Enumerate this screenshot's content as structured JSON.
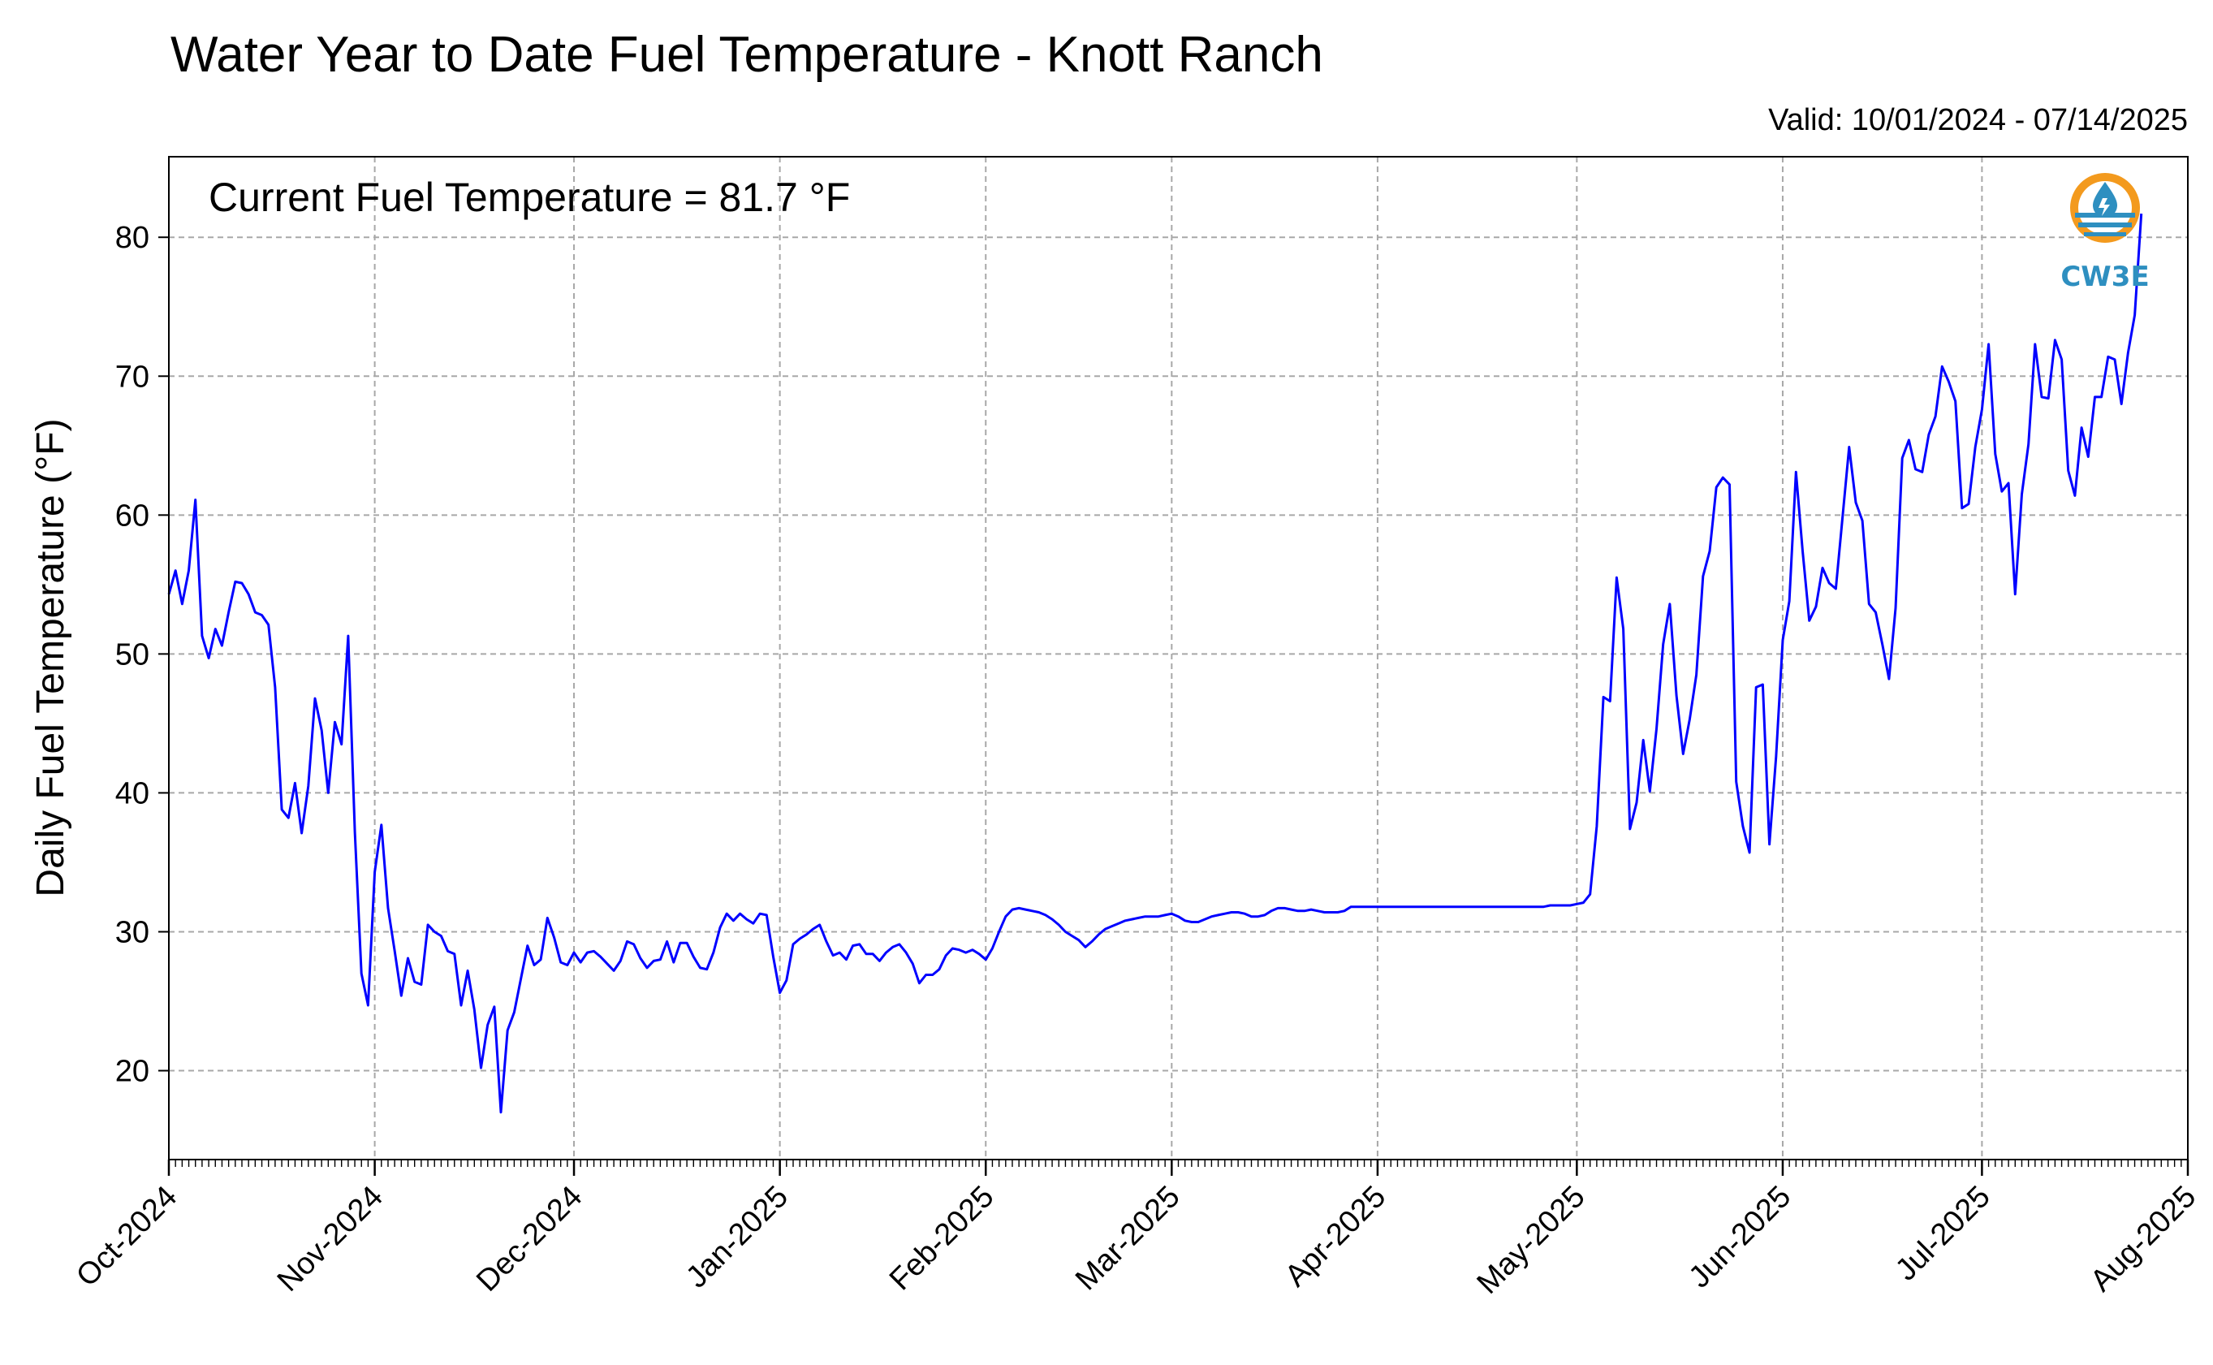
{
  "chart_data": {
    "type": "line",
    "title": "Water Year to Date Fuel Temperature - Knott Ranch",
    "valid_label": "Valid: 10/01/2024 - 07/14/2025",
    "current_label": "Current Fuel Temperature = 81.7 °F",
    "ylabel": "Daily Fuel Temperature (°F)",
    "xlabel": "",
    "ylim": [
      13.6,
      85.8
    ],
    "xlim": [
      "2024-10-01",
      "2025-08-01"
    ],
    "y_ticks": [
      20,
      30,
      40,
      50,
      60,
      70,
      80
    ],
    "x_ticks": [
      "2024-10-01",
      "2024-11-01",
      "2024-12-01",
      "2025-01-01",
      "2025-02-01",
      "2025-03-01",
      "2025-04-01",
      "2025-05-01",
      "2025-06-01",
      "2025-07-01",
      "2025-08-01"
    ],
    "x_tick_labels": [
      "Oct-2024",
      "Nov-2024",
      "Dec-2024",
      "Jan-2025",
      "Feb-2025",
      "Mar-2025",
      "Apr-2025",
      "May-2025",
      "Jun-2025",
      "Jul-2025",
      "Aug-2025"
    ],
    "grid": true,
    "line_color": "#0000ff",
    "series": [
      {
        "start_date": "2024-10-01",
        "interval": "daily",
        "values": [
          54.3,
          56.0,
          53.6,
          56.0,
          61.1,
          51.3,
          49.7,
          51.8,
          50.6,
          53.0,
          55.2,
          55.1,
          54.3,
          53.0,
          52.8,
          52.1,
          47.6,
          38.8,
          38.2,
          40.7,
          37.1,
          40.5,
          46.8,
          44.5,
          40.0,
          45.1,
          43.5,
          51.3,
          37.2,
          27.0,
          24.7,
          34.3,
          37.7,
          31.7,
          28.6,
          25.4,
          28.1,
          26.4,
          26.2,
          30.5,
          30.0,
          29.7,
          28.6,
          28.4,
          24.7,
          27.2,
          24.4,
          20.2,
          23.3,
          24.6,
          17.0,
          22.9,
          24.2,
          26.6,
          29.0,
          27.6,
          28.0,
          31.0,
          29.6,
          27.8,
          27.6,
          28.5,
          27.8,
          28.5,
          28.6,
          28.2,
          27.7,
          27.2,
          27.9,
          29.3,
          29.1,
          28.1,
          27.4,
          27.9,
          28.0,
          29.3,
          27.8,
          29.2,
          29.2,
          28.2,
          27.4,
          27.3,
          28.5,
          30.3,
          31.3,
          30.8,
          31.3,
          30.9,
          30.6,
          31.3,
          31.2,
          28.2,
          25.6,
          26.5,
          29.1,
          29.5,
          29.8,
          30.2,
          30.5,
          29.3,
          28.3,
          28.5,
          28.0,
          29.0,
          29.1,
          28.4,
          28.4,
          27.9,
          28.5,
          28.9,
          29.1,
          28.5,
          27.7,
          26.3,
          26.9,
          26.9,
          27.3,
          28.3,
          28.8,
          28.7,
          28.5,
          28.7,
          28.4,
          28.0,
          28.8,
          30.0,
          31.1,
          31.6,
          31.7,
          31.6,
          31.5,
          31.4,
          31.2,
          30.9,
          30.5,
          30.0,
          29.7,
          29.4,
          28.9,
          29.3,
          29.8,
          30.2,
          30.4,
          30.6,
          30.8,
          30.9,
          31.0,
          31.1,
          31.1,
          31.1,
          31.2,
          31.3,
          31.1,
          30.8,
          30.7,
          30.7,
          30.9,
          31.1,
          31.2,
          31.3,
          31.4,
          31.4,
          31.3,
          31.1,
          31.1,
          31.2,
          31.5,
          31.7,
          31.7,
          31.6,
          31.5,
          31.5,
          31.6,
          31.5,
          31.4,
          31.4,
          31.4,
          31.5,
          31.8,
          31.8,
          31.8,
          31.8,
          31.8,
          31.8,
          31.8,
          31.8,
          31.8,
          31.8,
          31.8,
          31.8,
          31.8,
          31.8,
          31.8,
          31.8,
          31.8,
          31.8,
          31.8,
          31.8,
          31.8,
          31.8,
          31.8,
          31.8,
          31.8,
          31.8,
          31.8,
          31.8,
          31.8,
          31.8,
          31.9,
          31.9,
          31.9,
          31.9,
          32.0,
          32.1,
          32.7,
          37.6,
          46.9,
          46.6,
          55.5,
          51.8,
          37.4,
          39.3,
          43.8,
          40.1,
          44.6,
          50.7,
          53.6,
          47.0,
          42.8,
          45.3,
          48.5,
          55.6,
          57.4,
          62.0,
          62.7,
          62.2,
          40.8,
          37.6,
          35.7,
          47.6,
          47.8,
          36.3,
          42.6,
          51.0,
          53.8,
          63.1,
          57.4,
          52.4,
          53.4,
          56.2,
          55.1,
          54.7,
          59.8,
          64.9,
          60.9,
          59.6,
          53.6,
          53.0,
          50.7,
          48.2,
          53.3,
          64.1,
          65.4,
          63.3,
          63.1,
          65.8,
          67.1,
          70.7,
          69.6,
          68.2,
          60.5,
          60.8,
          64.9,
          67.6,
          72.3,
          64.4,
          61.7,
          62.3,
          54.3,
          61.5,
          65.1,
          72.3,
          68.5,
          68.4,
          72.6,
          71.2,
          63.2,
          61.4,
          66.3,
          64.2,
          68.5,
          68.5,
          71.4,
          71.2,
          68.0,
          71.7,
          74.4,
          81.7
        ]
      }
    ]
  },
  "logo": {
    "text": "CW3E",
    "ring_color": "#f39a1e",
    "blue_color": "#2e8fc0"
  }
}
